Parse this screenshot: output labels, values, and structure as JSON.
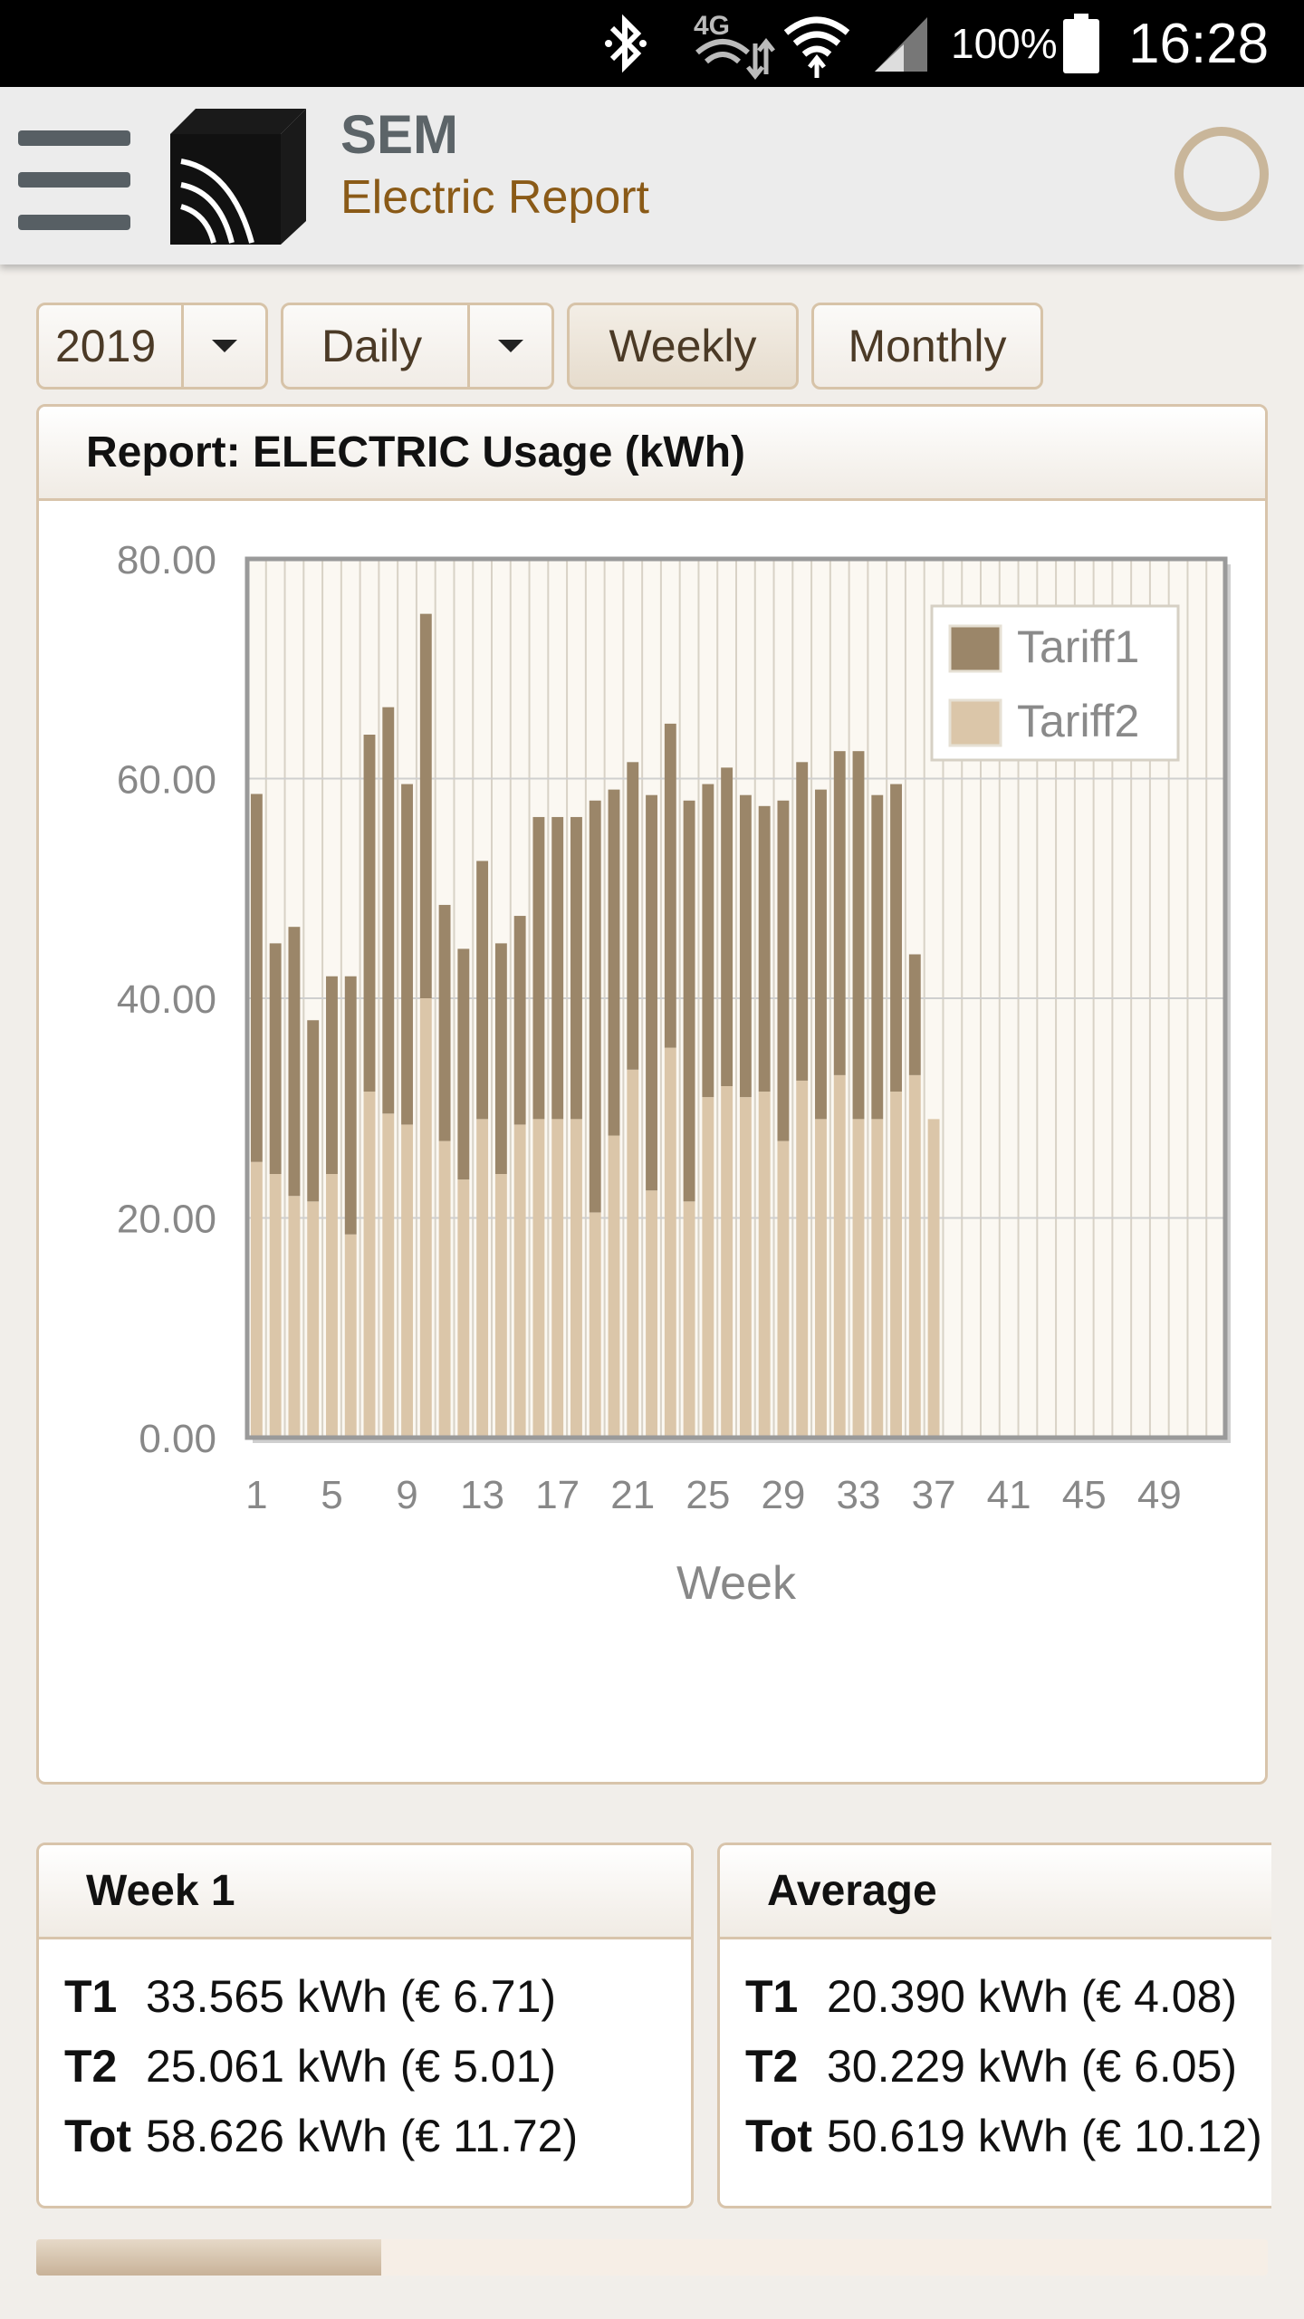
{
  "status_bar": {
    "battery": "100%",
    "time": "16:28",
    "network": "4G",
    "icons": [
      "bluetooth-icon",
      "network-4g-icon",
      "wifi-icon",
      "signal-icon",
      "battery-icon"
    ]
  },
  "app_bar": {
    "title": "SEM",
    "subtitle": "Electric Report",
    "icons": [
      "menu-icon",
      "app-logo",
      "refresh-icon"
    ]
  },
  "controls": {
    "year_value": "2019",
    "period_value": "Daily",
    "weekly_label": "Weekly",
    "monthly_label": "Monthly"
  },
  "report_panel": {
    "title": "Report: ELECTRIC Usage (kWh)"
  },
  "colors": {
    "tariff1": "#9b8669",
    "tariff2": "#dbc6a9",
    "accent": "#8a5a17",
    "border": "#d8c4ab"
  },
  "chart_data": {
    "type": "bar",
    "stacked": true,
    "xlabel": "Week",
    "ylabel": "",
    "ylim": [
      0,
      80
    ],
    "y_ticks": [
      "0.00",
      "20.00",
      "40.00",
      "60.00",
      "80.00"
    ],
    "x_ticks": [
      "1",
      "5",
      "9",
      "13",
      "17",
      "21",
      "25",
      "29",
      "33",
      "37",
      "41",
      "45",
      "49"
    ],
    "x_range": [
      1,
      52
    ],
    "grid": true,
    "legend": "top-right",
    "categories": [
      1,
      2,
      3,
      4,
      5,
      6,
      7,
      8,
      9,
      10,
      11,
      12,
      13,
      14,
      15,
      16,
      17,
      18,
      19,
      20,
      21,
      22,
      23,
      24,
      25,
      26,
      27,
      28,
      29,
      30,
      31,
      32,
      33,
      34,
      35,
      36,
      37,
      38,
      39,
      40,
      41,
      42,
      43,
      44,
      45,
      46,
      47,
      48,
      49,
      50,
      51,
      52
    ],
    "series": [
      {
        "name": "Tariff1",
        "values": [
          33.5,
          21.0,
          24.5,
          16.5,
          18.0,
          23.5,
          32.5,
          37.0,
          31.0,
          35.0,
          21.5,
          21.0,
          23.5,
          21.0,
          19.0,
          27.5,
          27.5,
          27.5,
          37.5,
          31.5,
          28.0,
          36.0,
          29.5,
          36.5,
          28.5,
          29.0,
          27.5,
          26.0,
          31.0,
          29.0,
          30.0,
          29.5,
          33.5,
          29.5,
          28.0,
          11.0,
          0,
          0,
          0,
          0,
          0,
          0,
          0,
          0,
          0,
          0,
          0,
          0,
          0,
          0,
          0,
          0
        ]
      },
      {
        "name": "Tariff2",
        "values": [
          25.1,
          24.0,
          22.0,
          21.5,
          24.0,
          18.5,
          31.5,
          29.5,
          28.5,
          40.0,
          27.0,
          23.5,
          29.0,
          24.0,
          28.5,
          29.0,
          29.0,
          29.0,
          20.5,
          27.5,
          33.5,
          22.5,
          35.5,
          21.5,
          31.0,
          32.0,
          31.0,
          31.5,
          27.0,
          32.5,
          29.0,
          33.0,
          29.0,
          29.0,
          31.5,
          33.0,
          29.0,
          0,
          0,
          0,
          0,
          0,
          0,
          0,
          0,
          0,
          0,
          0,
          0,
          0,
          0,
          0
        ]
      }
    ]
  },
  "week_panel": {
    "title": "Week 1",
    "rows": [
      {
        "key": "T1",
        "value": "33.565 kWh (€ 6.71)"
      },
      {
        "key": "T2",
        "value": "25.061 kWh (€ 5.01)"
      },
      {
        "key": "Tot",
        "value": "58.626 kWh (€ 11.72)"
      }
    ]
  },
  "average_panel": {
    "title": "Average",
    "rows": [
      {
        "key": "T1",
        "value": "20.390 kWh (€ 4.08)"
      },
      {
        "key": "T2",
        "value": "30.229 kWh (€ 6.05)"
      },
      {
        "key": "Tot",
        "value": "50.619 kWh (€ 10.12)"
      }
    ]
  },
  "progress": {
    "fraction": 0.28
  }
}
